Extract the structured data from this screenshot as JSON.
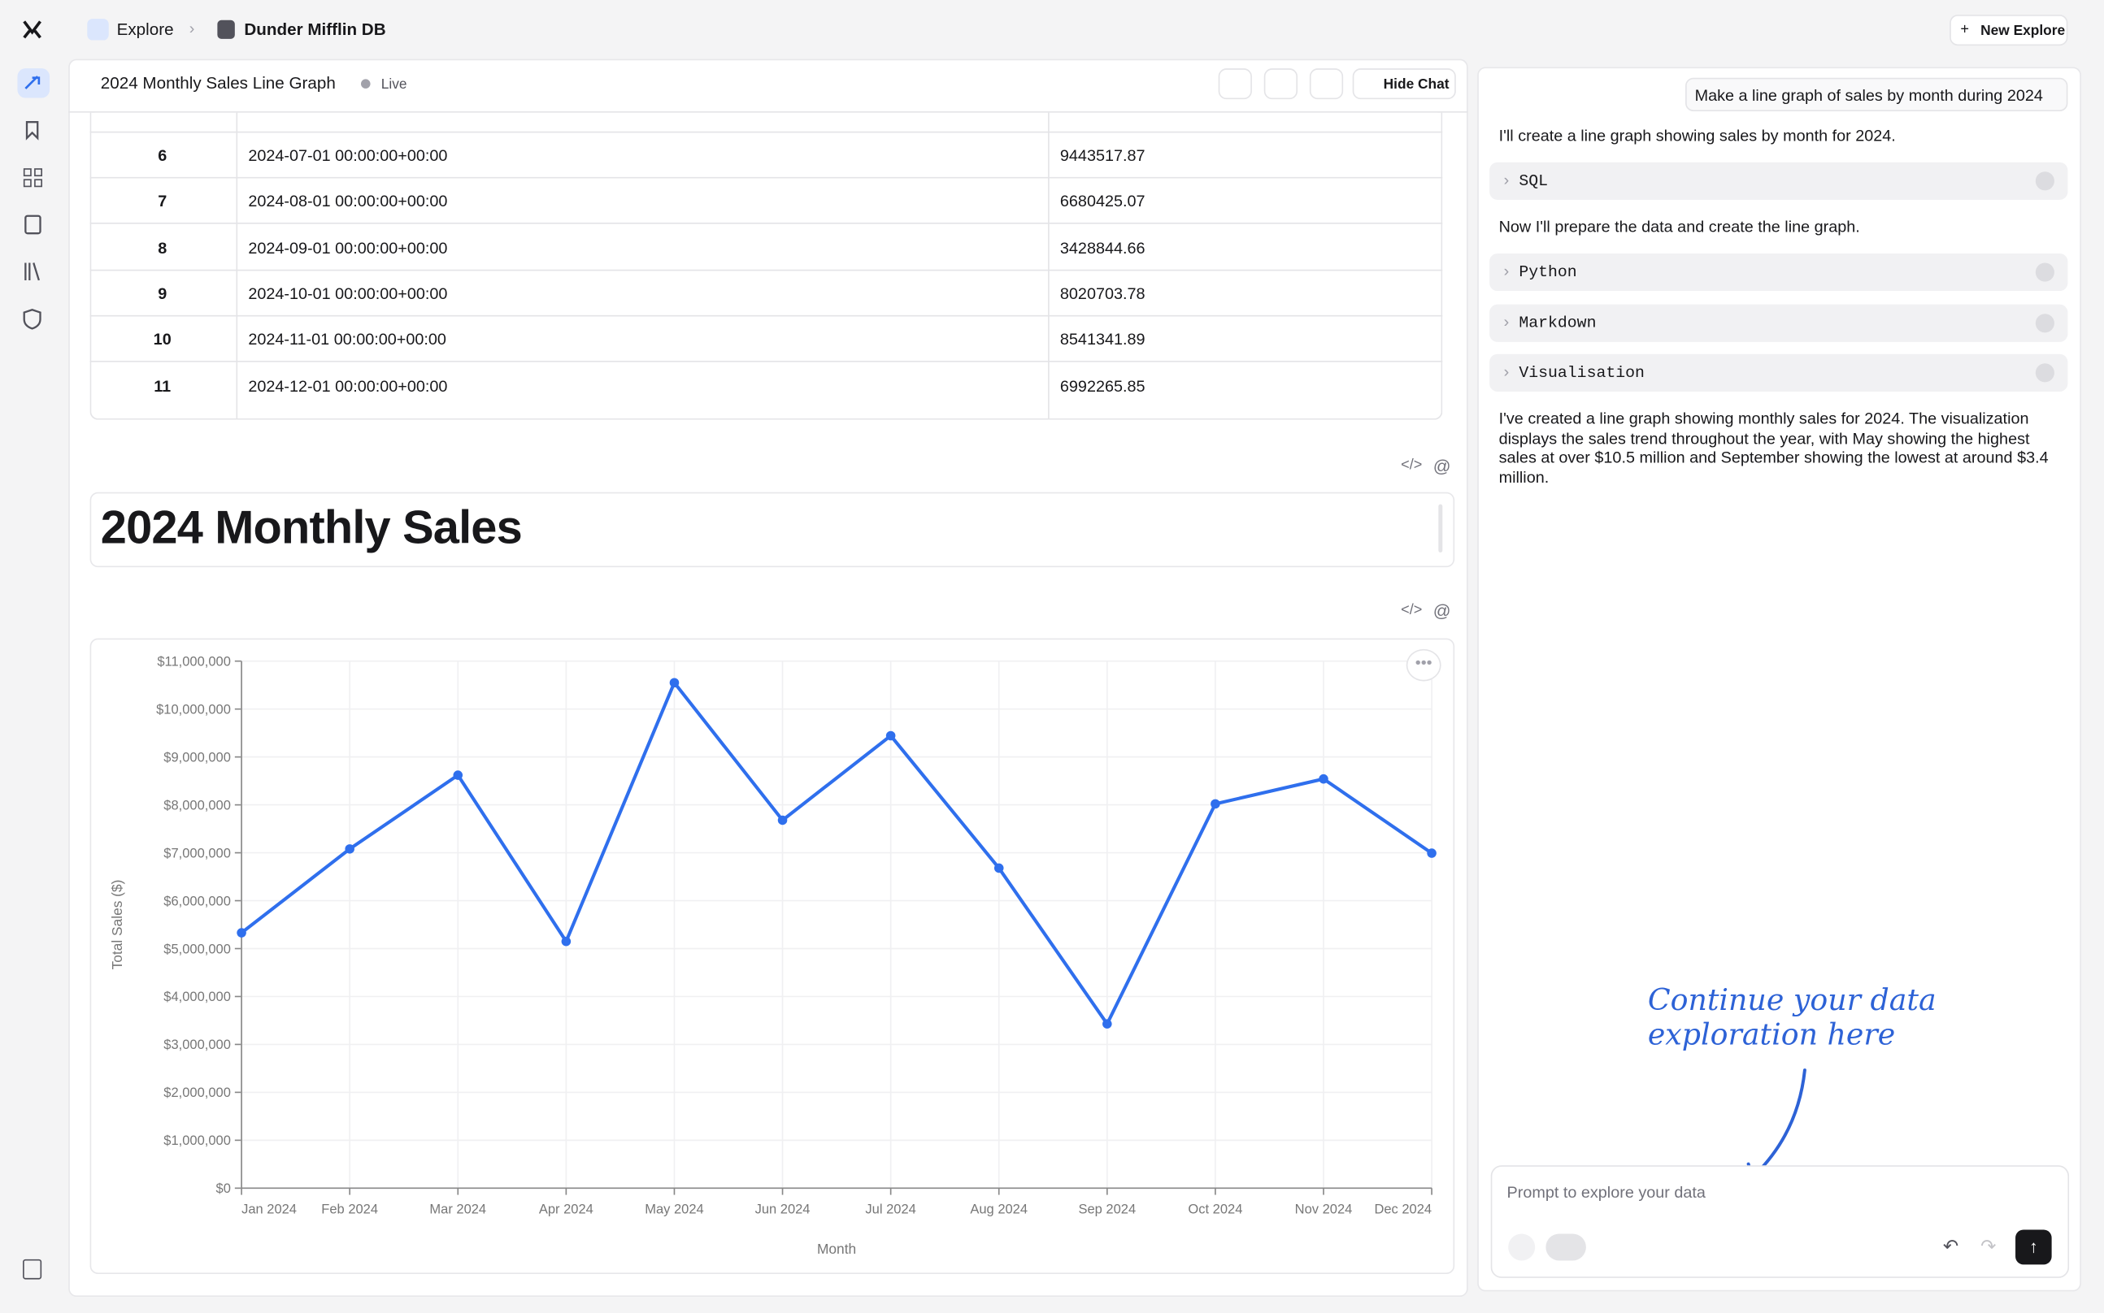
{
  "nav": {
    "breadcrumb": [
      "Explore",
      "Dunder Mifflin DB"
    ],
    "new_button": "New Explore"
  },
  "header": {
    "title": "2024 Monthly Sales Line Graph",
    "status": "Live",
    "hide_chat": "Hide Chat"
  },
  "table": {
    "rows": [
      [
        6,
        "2024-07-01 00:00:00+00:00",
        9443517.87
      ],
      [
        7,
        "2024-08-01 00:00:00+00:00",
        6680425.07
      ],
      [
        8,
        "2024-09-01 00:00:00+00:00",
        3428844.66
      ],
      [
        9,
        "2024-10-01 00:00:00+00:00",
        8020703.78
      ],
      [
        10,
        "2024-11-01 00:00:00+00:00",
        8541341.89
      ],
      [
        11,
        "2024-12-01 00:00:00+00:00",
        6992265.85
      ]
    ]
  },
  "heading": "2024 Monthly Sales",
  "chart_data": {
    "type": "line",
    "x_label": "Month",
    "y_label": "Total Sales ($)",
    "categories": [
      "Jan 2024",
      "Feb 2024",
      "Mar 2024",
      "Apr 2024",
      "May 2024",
      "Jun 2024",
      "Jul 2024",
      "Aug 2024",
      "Sep 2024",
      "Oct 2024",
      "Nov 2024",
      "Dec 2024"
    ],
    "values": [
      5330000,
      7080000,
      8620000,
      5150000,
      10550000,
      7680000,
      9443517.87,
      6680425.07,
      3428844.66,
      8020703.78,
      8541341.89,
      6992265.85
    ],
    "color": "#2f6fed",
    "ylim": [
      0,
      11000000
    ],
    "yticks": [
      {
        "value": 0,
        "label": "$0"
      },
      {
        "value": 1000000,
        "label": "$1,000,000"
      },
      {
        "value": 2000000,
        "label": "$2,000,000"
      },
      {
        "value": 3000000,
        "label": "$3,000,000"
      },
      {
        "value": 4000000,
        "label": "$4,000,000"
      },
      {
        "value": 5000000,
        "label": "$5,000,000"
      },
      {
        "value": 6000000,
        "label": "$6,000,000"
      },
      {
        "value": 7000000,
        "label": "$7,000,000"
      },
      {
        "value": 8000000,
        "label": "$8,000,000"
      },
      {
        "value": 9000000,
        "label": "$9,000,000"
      },
      {
        "value": 10000000,
        "label": "$10,000,000"
      },
      {
        "value": 11000000,
        "label": "$11,000,000"
      }
    ],
    "grid": true
  },
  "chat": {
    "user_message": "Make a line graph of sales by month during 2024",
    "messages": [
      "I'll create a line graph showing sales by month for 2024.",
      "Now I'll prepare the data and create the line graph.",
      "I've created a line graph showing monthly sales for 2024. The visualization displays the sales trend throughout the year, with May showing the highest sales at over $10.5 million and September showing the lowest at around $3.4 million."
    ],
    "steps": [
      "SQL",
      "Python",
      "Markdown",
      "Visualisation"
    ],
    "input_placeholder": "Prompt to explore your data",
    "annotation": [
      "Continue your data",
      "exploration here"
    ]
  }
}
